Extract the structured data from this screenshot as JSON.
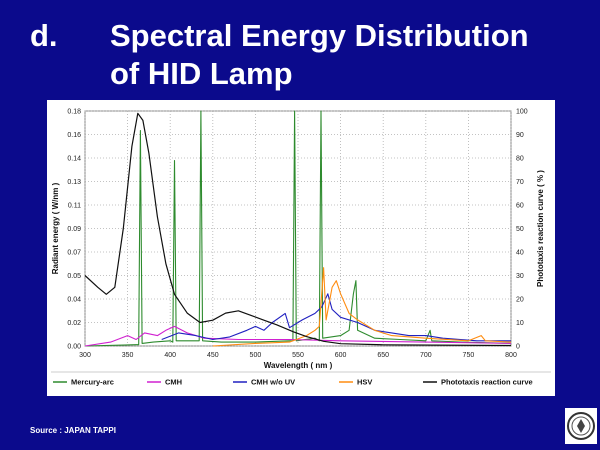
{
  "slide": {
    "letter": "d.",
    "title_line1": "Spectral Energy Distribution",
    "title_line2": "of HID Lamp",
    "source": "Source : JAPAN TAPPI"
  },
  "logo": {
    "icon": "seal-emblem-icon"
  },
  "chart_data": {
    "type": "line",
    "xlabel": "Wavelength ( nm )",
    "ylabel": "Radiant energy ( W/nm )",
    "y2label": "Phototaxis reaction curve  ( % )",
    "xlim": [
      300,
      800
    ],
    "ylim": [
      0,
      0.18
    ],
    "y2lim": [
      0,
      100
    ],
    "x_ticks": [
      "300",
      "350",
      "400",
      "450",
      "500",
      "550",
      "600",
      "650",
      "700",
      "750",
      "800"
    ],
    "y_ticks": [
      "0.00",
      "0.02",
      "0.04",
      "0.05",
      "0.07",
      "0.09",
      "0.11",
      "0.13",
      "0.14",
      "0.16",
      "0.18"
    ],
    "y2_ticks": [
      "0",
      "10",
      "20",
      "30",
      "40",
      "50",
      "60",
      "70",
      "80",
      "90",
      "100"
    ],
    "grid": true,
    "legend_position": "bottom",
    "series": [
      {
        "name": "Mercury-arc",
        "color": "#2e8b2e",
        "axis": "left",
        "points": [
          [
            300,
            0
          ],
          [
            360,
            0.001
          ],
          [
            363,
            0.001
          ],
          [
            365,
            0.165
          ],
          [
            367,
            0.002
          ],
          [
            380,
            0.003
          ],
          [
            400,
            0.004
          ],
          [
            403,
            0.003
          ],
          [
            405,
            0.142
          ],
          [
            407,
            0.004
          ],
          [
            420,
            0.004
          ],
          [
            434,
            0.004
          ],
          [
            436,
            0.18
          ],
          [
            438,
            0.004
          ],
          [
            460,
            0.003
          ],
          [
            500,
            0.003
          ],
          [
            540,
            0.004
          ],
          [
            544,
            0.004
          ],
          [
            546,
            0.18
          ],
          [
            548,
            0.004
          ],
          [
            570,
            0.006
          ],
          [
            575,
            0.004
          ],
          [
            577,
            0.18
          ],
          [
            579,
            0.006
          ],
          [
            600,
            0.008
          ],
          [
            610,
            0.012
          ],
          [
            615,
            0.04
          ],
          [
            618,
            0.05
          ],
          [
            620,
            0.012
          ],
          [
            640,
            0.006
          ],
          [
            670,
            0.005
          ],
          [
            700,
            0.004
          ],
          [
            705,
            0.012
          ],
          [
            707,
            0.004
          ],
          [
            740,
            0.003
          ],
          [
            800,
            0.002
          ]
        ]
      },
      {
        "name": "CMH",
        "color": "#d020d0",
        "axis": "left",
        "points": [
          [
            300,
            0
          ],
          [
            330,
            0.003
          ],
          [
            350,
            0.008
          ],
          [
            360,
            0.005
          ],
          [
            370,
            0.01
          ],
          [
            385,
            0.008
          ],
          [
            395,
            0.012
          ],
          [
            405,
            0.015
          ],
          [
            420,
            0.01
          ],
          [
            440,
            0.006
          ],
          [
            480,
            0.005
          ],
          [
            540,
            0.005
          ],
          [
            600,
            0.004
          ],
          [
            700,
            0.003
          ],
          [
            800,
            0.002
          ]
        ]
      },
      {
        "name": "CMH w/o UV",
        "color": "#2020c0",
        "axis": "left",
        "points": [
          [
            390,
            0.005
          ],
          [
            410,
            0.01
          ],
          [
            430,
            0.008
          ],
          [
            450,
            0.005
          ],
          [
            470,
            0.007
          ],
          [
            490,
            0.012
          ],
          [
            500,
            0.015
          ],
          [
            510,
            0.012
          ],
          [
            520,
            0.018
          ],
          [
            535,
            0.025
          ],
          [
            540,
            0.014
          ],
          [
            555,
            0.02
          ],
          [
            570,
            0.025
          ],
          [
            578,
            0.03
          ],
          [
            585,
            0.04
          ],
          [
            590,
            0.028
          ],
          [
            600,
            0.022
          ],
          [
            620,
            0.018
          ],
          [
            640,
            0.012
          ],
          [
            660,
            0.01
          ],
          [
            680,
            0.008
          ],
          [
            700,
            0.008
          ],
          [
            720,
            0.006
          ],
          [
            760,
            0.004
          ],
          [
            800,
            0.004
          ]
        ]
      },
      {
        "name": "HSV",
        "color": "#ff8c10",
        "axis": "left",
        "points": [
          [
            450,
            0
          ],
          [
            500,
            0.002
          ],
          [
            540,
            0.003
          ],
          [
            560,
            0.008
          ],
          [
            570,
            0.012
          ],
          [
            575,
            0.015
          ],
          [
            580,
            0.06
          ],
          [
            583,
            0.02
          ],
          [
            590,
            0.045
          ],
          [
            595,
            0.05
          ],
          [
            600,
            0.04
          ],
          [
            610,
            0.025
          ],
          [
            620,
            0.02
          ],
          [
            640,
            0.012
          ],
          [
            660,
            0.008
          ],
          [
            700,
            0.006
          ],
          [
            750,
            0.004
          ],
          [
            765,
            0.008
          ],
          [
            770,
            0.004
          ],
          [
            800,
            0.003
          ]
        ]
      },
      {
        "name": "Phototaxis reaction curve",
        "color": "#101010",
        "axis": "right",
        "points": [
          [
            300,
            30
          ],
          [
            315,
            25
          ],
          [
            325,
            22
          ],
          [
            335,
            25
          ],
          [
            345,
            50
          ],
          [
            355,
            85
          ],
          [
            362,
            99
          ],
          [
            368,
            96
          ],
          [
            375,
            82
          ],
          [
            385,
            55
          ],
          [
            395,
            35
          ],
          [
            405,
            22
          ],
          [
            420,
            14
          ],
          [
            435,
            10
          ],
          [
            450,
            11
          ],
          [
            465,
            14
          ],
          [
            480,
            15
          ],
          [
            495,
            13
          ],
          [
            510,
            11
          ],
          [
            525,
            9
          ],
          [
            545,
            6
          ],
          [
            560,
            4
          ],
          [
            580,
            2
          ],
          [
            600,
            1
          ],
          [
            650,
            0.5
          ],
          [
            800,
            0.2
          ]
        ]
      }
    ]
  }
}
